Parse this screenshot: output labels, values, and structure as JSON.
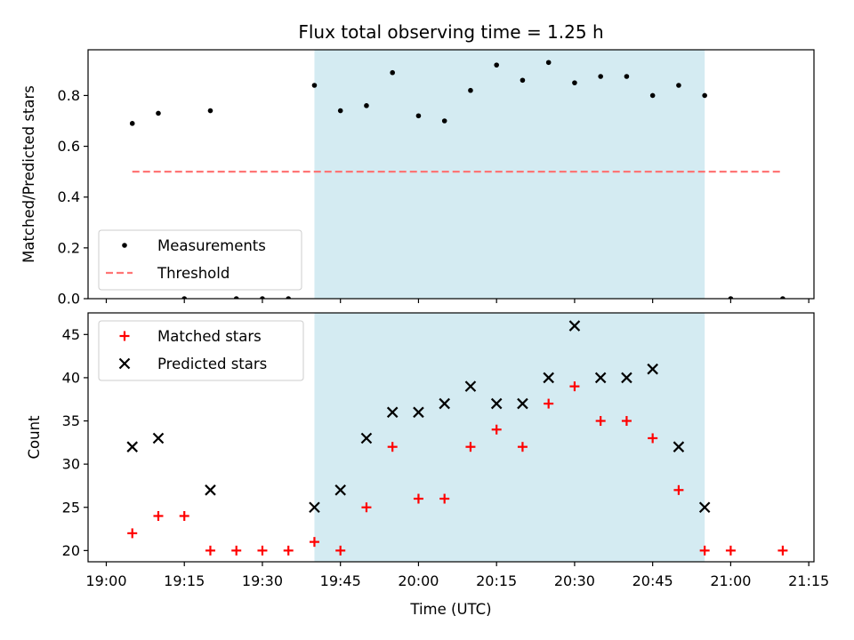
{
  "chart_data": {
    "type": "scatter",
    "title": "Flux total observing time = 1.25 h",
    "x_unit": "minutes after 19:00",
    "x_ticks": [
      0,
      15,
      30,
      45,
      60,
      75,
      90,
      105,
      120,
      135
    ],
    "x_tick_labels": [
      "19:00",
      "19:15",
      "19:30",
      "19:45",
      "20:00",
      "20:15",
      "20:30",
      "20:45",
      "21:00",
      "21:15"
    ],
    "xlabel": "Time (UTC)",
    "xlim": [
      -3.5,
      136
    ],
    "shaded_span": {
      "x_start": 40,
      "x_end": 115,
      "color": "#add8e6"
    },
    "panels": [
      {
        "id": "ratio",
        "ylabel": "Matched/Predicted stars",
        "ylim": [
          0.0,
          0.98
        ],
        "y_ticks": [
          0.0,
          0.2,
          0.4,
          0.6,
          0.8
        ],
        "y_tick_labels": [
          "0.0",
          "0.2",
          "0.4",
          "0.6",
          "0.8"
        ],
        "legend": {
          "location": "lower left"
        },
        "series": [
          {
            "name": "Measurements",
            "marker": "dot",
            "color": "#000000",
            "x": [
              5,
              10,
              15,
              20,
              25,
              30,
              35,
              40,
              45,
              50,
              55,
              60,
              65,
              70,
              75,
              80,
              85,
              90,
              95,
              100,
              105,
              110,
              115,
              120,
              130
            ],
            "y": [
              0.69,
              0.73,
              0.0,
              0.74,
              0.0,
              0.0,
              0.0,
              0.84,
              0.74,
              0.76,
              0.89,
              0.72,
              0.7,
              0.82,
              0.92,
              0.86,
              0.93,
              0.85,
              0.875,
              0.875,
              0.8,
              0.84,
              0.8,
              0.0,
              0.0
            ]
          },
          {
            "name": "Threshold",
            "marker": "dashed-line",
            "color": "#ff7575",
            "x": [
              5,
              130
            ],
            "y": [
              0.5,
              0.5
            ]
          }
        ]
      },
      {
        "id": "count",
        "ylabel": "Count",
        "ylim": [
          18.7,
          47.5
        ],
        "y_ticks": [
          20,
          25,
          30,
          35,
          40,
          45
        ],
        "y_tick_labels": [
          "20",
          "25",
          "30",
          "35",
          "40",
          "45"
        ],
        "legend": {
          "location": "upper left"
        },
        "series": [
          {
            "name": "Matched stars",
            "marker": "plus",
            "color": "#ff0000",
            "x": [
              5,
              10,
              15,
              20,
              25,
              30,
              35,
              40,
              45,
              50,
              55,
              60,
              65,
              70,
              75,
              80,
              85,
              90,
              95,
              100,
              105,
              110,
              115,
              120,
              130
            ],
            "y": [
              22,
              24,
              24,
              20,
              20,
              20,
              20,
              21,
              20,
              25,
              32,
              26,
              26,
              32,
              34,
              32,
              37,
              39,
              35,
              35,
              33,
              27,
              20,
              20,
              20
            ]
          },
          {
            "name": "Predicted stars",
            "marker": "x",
            "color": "#000000",
            "x": [
              5,
              10,
              20,
              40,
              45,
              50,
              55,
              60,
              65,
              70,
              75,
              80,
              85,
              90,
              95,
              100,
              105,
              110,
              115
            ],
            "y": [
              32,
              33,
              27,
              25,
              27,
              33,
              36,
              36,
              37,
              39,
              37,
              37,
              40,
              46,
              40,
              40,
              41,
              32,
              25
            ]
          }
        ]
      }
    ]
  }
}
